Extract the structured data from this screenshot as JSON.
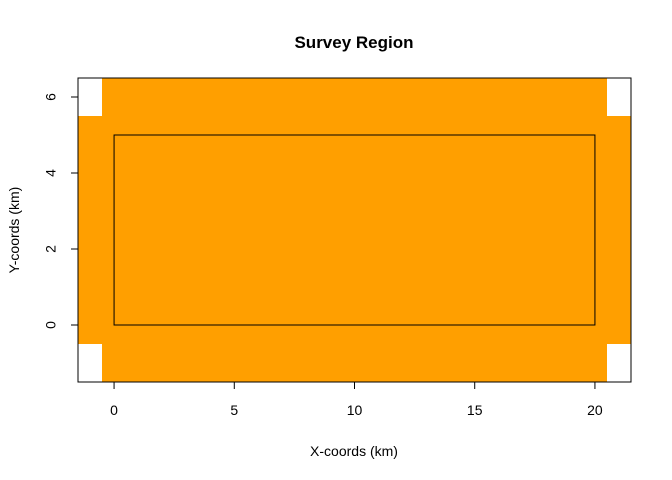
{
  "chart_data": {
    "type": "area",
    "title": "Survey Region",
    "xlabel": "X-coords (km)",
    "ylabel": "Y-coords (km)",
    "xlim": [
      -1.5,
      21.5
    ],
    "ylim": [
      -1.5,
      6.5
    ],
    "xticks": [
      0,
      5,
      10,
      15,
      20
    ],
    "yticks": [
      0,
      2,
      4,
      6
    ],
    "xtick_labels": [
      "0",
      "5",
      "10",
      "15",
      "20"
    ],
    "ytick_labels": [
      "0",
      "2",
      "4",
      "6"
    ],
    "grid": false,
    "fill_color": "#FF9F00",
    "buffer_region": {
      "description_points": [
        [
          -0.5,
          -1.5
        ],
        [
          20.5,
          -1.5
        ],
        [
          20.5,
          -0.5
        ],
        [
          21.5,
          -0.5
        ],
        [
          21.5,
          5.5
        ],
        [
          20.5,
          5.5
        ],
        [
          20.5,
          6.5
        ],
        [
          -0.5,
          6.5
        ],
        [
          -0.5,
          5.5
        ],
        [
          -1.5,
          5.5
        ],
        [
          -1.5,
          -0.5
        ],
        [
          -0.5,
          -0.5
        ]
      ]
    },
    "study_region": {
      "x": [
        0,
        20
      ],
      "y": [
        0,
        5
      ]
    }
  }
}
